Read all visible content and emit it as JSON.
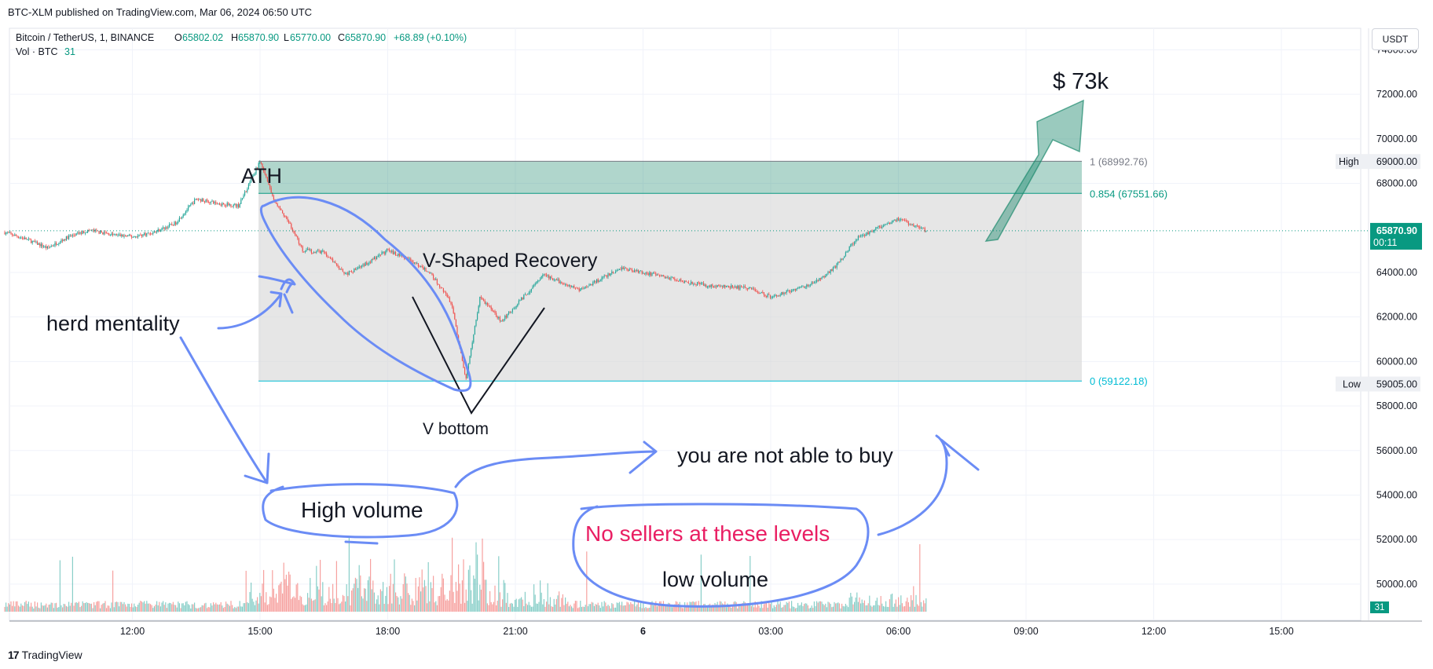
{
  "header": {
    "published": "BTC-XLM published on TradingView.com, Mar 06, 2024 06:50 UTC",
    "symbol": "Bitcoin / TetherUS, 1, BINANCE",
    "ohlc": {
      "o_label": "O",
      "o": "65802.02",
      "h_label": "H",
      "h": "65870.90",
      "l_label": "L",
      "l": "65770.00",
      "c_label": "C",
      "c": "65870.90",
      "change": "+68.89 (+0.10%)"
    },
    "vol_label": "Vol · BTC",
    "vol_value": "31"
  },
  "currency_button": "USDT",
  "footer": {
    "logo_text": "TradingView",
    "logo_mark": "17"
  },
  "colors": {
    "up": "#26a69a",
    "down": "#ef5350",
    "fib_band": "#1e8a6e",
    "range_box": "#d6d6d6",
    "annotation": "#6b8cf5",
    "pink_text": "#e91e63",
    "price_label_bg": "#089981"
  },
  "chart_data": {
    "type": "candlestick",
    "symbol": "Bitcoin / TetherUS",
    "interval": "1",
    "exchange": "BINANCE",
    "y_axis": {
      "ticks": [
        "74000.00",
        "72000.00",
        "70000.00",
        "68000.00",
        "64000.00",
        "62000.00",
        "60000.00",
        "58000.00",
        "56000.00",
        "54000.00",
        "52000.00",
        "50000.00"
      ],
      "range": [
        50000,
        75300
      ]
    },
    "x_axis": {
      "ticks": [
        "12:00",
        "15:00",
        "18:00",
        "21:00",
        "6",
        "03:00",
        "06:00",
        "09:00",
        "12:00",
        "15:00"
      ]
    },
    "price_path": [
      {
        "t": "09:00",
        "p": 65800
      },
      {
        "t": "09:30",
        "p": 65500
      },
      {
        "t": "10:00",
        "p": 65100
      },
      {
        "t": "10:30",
        "p": 65600
      },
      {
        "t": "11:00",
        "p": 65900
      },
      {
        "t": "11:30",
        "p": 65700
      },
      {
        "t": "12:00",
        "p": 65600
      },
      {
        "t": "12:30",
        "p": 65800
      },
      {
        "t": "13:00",
        "p": 66200
      },
      {
        "t": "13:30",
        "p": 67300
      },
      {
        "t": "14:00",
        "p": 67100
      },
      {
        "t": "14:30",
        "p": 67000
      },
      {
        "t": "15:00",
        "p": 69000
      },
      {
        "t": "15:20",
        "p": 67200
      },
      {
        "t": "15:40",
        "p": 66300
      },
      {
        "t": "16:00",
        "p": 65000
      },
      {
        "t": "16:30",
        "p": 64900
      },
      {
        "t": "17:00",
        "p": 63900
      },
      {
        "t": "17:30",
        "p": 64400
      },
      {
        "t": "18:00",
        "p": 65000
      },
      {
        "t": "18:30",
        "p": 64600
      },
      {
        "t": "19:00",
        "p": 64000
      },
      {
        "t": "19:30",
        "p": 62600
      },
      {
        "t": "19:50",
        "p": 59200
      },
      {
        "t": "20:10",
        "p": 62900
      },
      {
        "t": "20:40",
        "p": 61800
      },
      {
        "t": "21:00",
        "p": 62500
      },
      {
        "t": "21:40",
        "p": 63900
      },
      {
        "t": "22:30",
        "p": 63200
      },
      {
        "t": "23:30",
        "p": 64200
      },
      {
        "t": "00:30",
        "p": 63800
      },
      {
        "t": "01:30",
        "p": 63400
      },
      {
        "t": "02:30",
        "p": 63300
      },
      {
        "t": "03:00",
        "p": 62900
      },
      {
        "t": "04:00",
        "p": 63500
      },
      {
        "t": "04:30",
        "p": 64200
      },
      {
        "t": "05:00",
        "p": 65500
      },
      {
        "t": "05:30",
        "p": 66000
      },
      {
        "t": "06:00",
        "p": 66400
      },
      {
        "t": "06:40",
        "p": 65870
      }
    ],
    "horizontal_lines": [
      {
        "label": "1 (68992.76)",
        "value": 68992.76
      },
      {
        "label": "0.854 (67551.66)",
        "value": 67551.66
      },
      {
        "label": "0 (59122.18)",
        "value": 59122.18
      }
    ],
    "high": {
      "label": "High",
      "value": "69000.00"
    },
    "low": {
      "label": "Low",
      "value": "59005.00"
    },
    "last_price": {
      "value": "65870.90",
      "countdown": "00:11"
    },
    "volume_last": "31",
    "annotations": {
      "ath": "ATH",
      "target": "$ 73k",
      "v_recovery": "V-Shaped Recovery",
      "v_bottom": "V bottom",
      "herd": "herd mentality",
      "high_volume": "High volume",
      "not_able": "you are not able to buy",
      "no_sellers": "No sellers at these levels",
      "low_volume": "low volume"
    }
  }
}
